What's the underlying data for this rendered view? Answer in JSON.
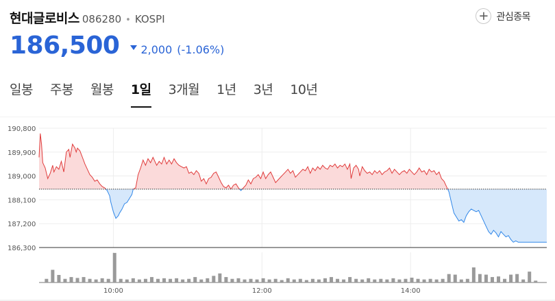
{
  "stock": {
    "name": "현대글로비스",
    "code": "086280",
    "market": "KOSPI",
    "favorite_label": "관심종목",
    "price": "186,500",
    "change": "2,000",
    "change_rate": "(-1.06%)",
    "direction": "down"
  },
  "tabs": [
    {
      "label": "일봉",
      "active": false
    },
    {
      "label": "주봉",
      "active": false
    },
    {
      "label": "월봉",
      "active": false
    },
    {
      "label": "1일",
      "active": true
    },
    {
      "label": "3개월",
      "active": false
    },
    {
      "label": "1년",
      "active": false
    },
    {
      "label": "3년",
      "active": false
    },
    {
      "label": "10년",
      "active": false
    }
  ],
  "colors": {
    "up": "#e03b3b",
    "up_fill": "#fbdada",
    "down": "#2f86e8",
    "down_fill": "#d6e8fb",
    "accent": "#2a64d6"
  },
  "chart_data": {
    "type": "line",
    "baseline": 188500,
    "ylim": [
      186300,
      190800
    ],
    "y_ticks": [
      190800,
      189900,
      189000,
      188100,
      187200,
      186300
    ],
    "y_tick_labels": [
      "190,800",
      "189,900",
      "189,000",
      "188,100",
      "187,200",
      "186,300"
    ],
    "x_tick_labels": [
      "10:00",
      "12:00",
      "14:00"
    ],
    "x_ticks_minutes": [
      60,
      180,
      300
    ],
    "x_range_minutes": [
      0,
      410
    ],
    "price_series": [
      [
        0,
        189700
      ],
      [
        1,
        190600
      ],
      [
        2,
        190200
      ],
      [
        3,
        189500
      ],
      [
        5,
        189300
      ],
      [
        7,
        188900
      ],
      [
        9,
        189100
      ],
      [
        11,
        189400
      ],
      [
        12,
        189150
      ],
      [
        14,
        189350
      ],
      [
        16,
        189250
      ],
      [
        18,
        189550
      ],
      [
        20,
        189150
      ],
      [
        22,
        189900
      ],
      [
        24,
        190000
      ],
      [
        25,
        189700
      ],
      [
        27,
        190200
      ],
      [
        29,
        190050
      ],
      [
        30,
        189900
      ],
      [
        31,
        190050
      ],
      [
        33,
        189950
      ],
      [
        35,
        189700
      ],
      [
        37,
        189450
      ],
      [
        39,
        189250
      ],
      [
        41,
        189050
      ],
      [
        43,
        188950
      ],
      [
        45,
        188800
      ],
      [
        47,
        188850
      ],
      [
        49,
        188700
      ],
      [
        51,
        188600
      ],
      [
        53,
        188550
      ],
      [
        55,
        188450
      ],
      [
        57,
        188250
      ],
      [
        58,
        188000
      ],
      [
        60,
        187650
      ],
      [
        62,
        187400
      ],
      [
        64,
        187500
      ],
      [
        65,
        187600
      ],
      [
        67,
        187750
      ],
      [
        69,
        187950
      ],
      [
        71,
        188000
      ],
      [
        73,
        188150
      ],
      [
        75,
        188300
      ],
      [
        76,
        188500
      ],
      [
        78,
        188550
      ],
      [
        80,
        189050
      ],
      [
        82,
        189300
      ],
      [
        84,
        189600
      ],
      [
        86,
        189400
      ],
      [
        88,
        189650
      ],
      [
        90,
        189500
      ],
      [
        92,
        189700
      ],
      [
        95,
        189400
      ],
      [
        97,
        189550
      ],
      [
        99,
        189450
      ],
      [
        101,
        189700
      ],
      [
        103,
        189450
      ],
      [
        105,
        189600
      ],
      [
        107,
        189450
      ],
      [
        109,
        189650
      ],
      [
        111,
        189500
      ],
      [
        113,
        189400
      ],
      [
        115,
        189350
      ],
      [
        117,
        189300
      ],
      [
        119,
        189350
      ],
      [
        121,
        189100
      ],
      [
        123,
        189150
      ],
      [
        125,
        189050
      ],
      [
        127,
        189200
      ],
      [
        129,
        189100
      ],
      [
        131,
        188800
      ],
      [
        133,
        188900
      ],
      [
        135,
        188700
      ],
      [
        137,
        188900
      ],
      [
        139,
        188950
      ],
      [
        141,
        189100
      ],
      [
        143,
        189150
      ],
      [
        145,
        188950
      ],
      [
        147,
        188750
      ],
      [
        149,
        188600
      ],
      [
        151,
        188550
      ],
      [
        153,
        188650
      ],
      [
        155,
        188500
      ],
      [
        157,
        188650
      ],
      [
        159,
        188700
      ],
      [
        161,
        188550
      ],
      [
        163,
        188450
      ],
      [
        165,
        188550
      ],
      [
        167,
        188650
      ],
      [
        169,
        188850
      ],
      [
        171,
        188700
      ],
      [
        173,
        188900
      ],
      [
        175,
        188950
      ],
      [
        177,
        189050
      ],
      [
        179,
        188900
      ],
      [
        181,
        189150
      ],
      [
        183,
        188900
      ],
      [
        185,
        189050
      ],
      [
        187,
        189150
      ],
      [
        189,
        188950
      ],
      [
        191,
        188750
      ],
      [
        193,
        188850
      ],
      [
        195,
        188950
      ],
      [
        197,
        189050
      ],
      [
        199,
        189150
      ],
      [
        201,
        189250
      ],
      [
        203,
        189100
      ],
      [
        205,
        189200
      ],
      [
        207,
        188950
      ],
      [
        209,
        189050
      ],
      [
        211,
        189150
      ],
      [
        213,
        189250
      ],
      [
        215,
        189200
      ],
      [
        217,
        189350
      ],
      [
        219,
        189100
      ],
      [
        221,
        189300
      ],
      [
        223,
        189200
      ],
      [
        225,
        189350
      ],
      [
        227,
        189250
      ],
      [
        229,
        189400
      ],
      [
        231,
        189300
      ],
      [
        233,
        189250
      ],
      [
        235,
        189400
      ],
      [
        237,
        189350
      ],
      [
        239,
        189450
      ],
      [
        241,
        189300
      ],
      [
        243,
        189400
      ],
      [
        245,
        189350
      ],
      [
        247,
        189450
      ],
      [
        249,
        189250
      ],
      [
        251,
        189450
      ],
      [
        252,
        188900
      ],
      [
        254,
        189300
      ],
      [
        256,
        189400
      ],
      [
        258,
        189250
      ],
      [
        259,
        189000
      ],
      [
        261,
        189350
      ],
      [
        263,
        189200
      ],
      [
        265,
        189100
      ],
      [
        267,
        189150
      ],
      [
        269,
        189050
      ],
      [
        271,
        189200
      ],
      [
        273,
        189100
      ],
      [
        275,
        189200
      ],
      [
        277,
        189050
      ],
      [
        279,
        189150
      ],
      [
        281,
        189200
      ],
      [
        283,
        189300
      ],
      [
        285,
        189100
      ],
      [
        287,
        189250
      ],
      [
        289,
        189150
      ],
      [
        291,
        189050
      ],
      [
        293,
        189150
      ],
      [
        295,
        189200
      ],
      [
        297,
        189100
      ],
      [
        299,
        189250
      ],
      [
        301,
        189150
      ],
      [
        303,
        189050
      ],
      [
        305,
        189150
      ],
      [
        307,
        189300
      ],
      [
        309,
        189150
      ],
      [
        311,
        189200
      ],
      [
        313,
        189050
      ],
      [
        315,
        189250
      ],
      [
        317,
        189150
      ],
      [
        319,
        189200
      ],
      [
        321,
        189050
      ],
      [
        323,
        189150
      ],
      [
        325,
        188900
      ],
      [
        327,
        188800
      ],
      [
        329,
        188600
      ],
      [
        331,
        188400
      ],
      [
        333,
        188000
      ],
      [
        335,
        187600
      ],
      [
        337,
        187450
      ],
      [
        339,
        187300
      ],
      [
        341,
        187350
      ],
      [
        343,
        187250
      ],
      [
        345,
        187500
      ],
      [
        347,
        187650
      ],
      [
        349,
        187750
      ],
      [
        351,
        187700
      ],
      [
        353,
        187650
      ],
      [
        355,
        187700
      ],
      [
        357,
        187500
      ],
      [
        359,
        187300
      ],
      [
        361,
        187100
      ],
      [
        363,
        186900
      ],
      [
        365,
        186800
      ],
      [
        367,
        186950
      ],
      [
        369,
        186850
      ],
      [
        371,
        186700
      ],
      [
        373,
        186900
      ],
      [
        375,
        186800
      ],
      [
        377,
        186700
      ],
      [
        379,
        186750
      ],
      [
        381,
        186600
      ],
      [
        383,
        186500
      ],
      [
        385,
        186550
      ],
      [
        387,
        186500
      ],
      [
        389,
        186500
      ],
      [
        395,
        186500
      ],
      [
        400,
        186500
      ],
      [
        410,
        186500
      ]
    ],
    "volume_bars": [
      [
        6,
        0.12
      ],
      [
        11,
        0.42
      ],
      [
        16,
        0.25
      ],
      [
        21,
        0.12
      ],
      [
        26,
        0.18
      ],
      [
        31,
        0.15
      ],
      [
        36,
        0.18
      ],
      [
        41,
        0.12
      ],
      [
        46,
        0.1
      ],
      [
        51,
        0.14
      ],
      [
        56,
        0.12
      ],
      [
        61,
        0.98
      ],
      [
        66,
        0.12
      ],
      [
        71,
        0.1
      ],
      [
        76,
        0.14
      ],
      [
        81,
        0.1
      ],
      [
        86,
        0.12
      ],
      [
        91,
        0.18
      ],
      [
        96,
        0.12
      ],
      [
        101,
        0.14
      ],
      [
        106,
        0.12
      ],
      [
        111,
        0.14
      ],
      [
        116,
        0.1
      ],
      [
        121,
        0.12
      ],
      [
        126,
        0.18
      ],
      [
        131,
        0.1
      ],
      [
        136,
        0.14
      ],
      [
        141,
        0.22
      ],
      [
        146,
        0.3
      ],
      [
        151,
        0.18
      ],
      [
        156,
        0.12
      ],
      [
        161,
        0.14
      ],
      [
        166,
        0.1
      ],
      [
        171,
        0.12
      ],
      [
        176,
        0.1
      ],
      [
        181,
        0.14
      ],
      [
        186,
        0.1
      ],
      [
        191,
        0.12
      ],
      [
        196,
        0.08
      ],
      [
        201,
        0.14
      ],
      [
        206,
        0.1
      ],
      [
        211,
        0.12
      ],
      [
        216,
        0.08
      ],
      [
        221,
        0.12
      ],
      [
        226,
        0.1
      ],
      [
        231,
        0.14
      ],
      [
        236,
        0.18
      ],
      [
        241,
        0.12
      ],
      [
        246,
        0.1
      ],
      [
        251,
        0.18
      ],
      [
        256,
        0.12
      ],
      [
        261,
        0.1
      ],
      [
        266,
        0.14
      ],
      [
        271,
        0.1
      ],
      [
        276,
        0.12
      ],
      [
        281,
        0.1
      ],
      [
        286,
        0.14
      ],
      [
        291,
        0.1
      ],
      [
        296,
        0.12
      ],
      [
        301,
        0.16
      ],
      [
        306,
        0.12
      ],
      [
        311,
        0.1
      ],
      [
        316,
        0.12
      ],
      [
        321,
        0.1
      ],
      [
        326,
        0.12
      ],
      [
        331,
        0.28
      ],
      [
        336,
        0.26
      ],
      [
        341,
        0.1
      ],
      [
        346,
        0.12
      ],
      [
        351,
        0.5
      ],
      [
        356,
        0.28
      ],
      [
        361,
        0.26
      ],
      [
        366,
        0.18
      ],
      [
        371,
        0.2
      ],
      [
        376,
        0.12
      ],
      [
        381,
        0.26
      ],
      [
        386,
        0.28
      ],
      [
        391,
        0.1
      ],
      [
        396,
        0.36
      ],
      [
        401,
        0.06
      ]
    ]
  }
}
